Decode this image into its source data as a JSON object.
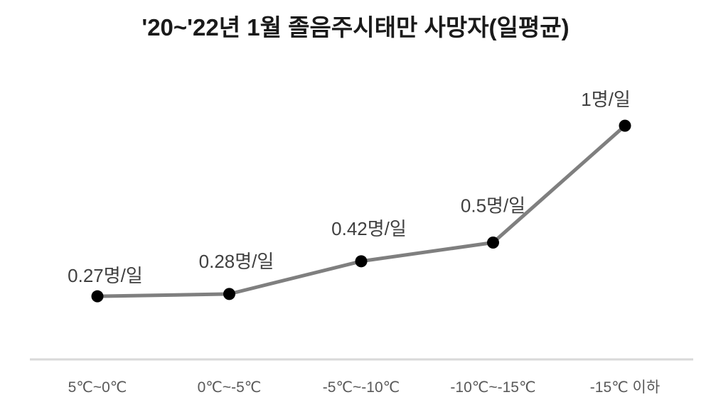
{
  "title": "'20~'22년 1월 졸음주시태만 사망자(일평균)",
  "chart_data": {
    "type": "line",
    "title": "'20~'22년 1월 졸음주시태만 사망자(일평균)",
    "categories": [
      "5℃~0℃",
      "0℃~-5℃",
      "-5℃~-10℃",
      "-10℃~-15℃",
      "-15℃ 이하"
    ],
    "series": [
      {
        "name": "졸음주시태만 사망자(일평균)",
        "values": [
          0.27,
          0.28,
          0.42,
          0.5,
          1
        ]
      }
    ],
    "data_labels": [
      "0.27명/일",
      "0.28명/일",
      "0.42명/일",
      "0.5명/일",
      "1명/일"
    ],
    "xlabel": "",
    "ylabel": "",
    "ylim": [
      0,
      1.1
    ],
    "grid": false,
    "legend": "none",
    "colors": {
      "line": "#7f7f7f",
      "marker": "#000000",
      "data_label": "#404040",
      "axis_label": "#595959",
      "axis_line": "#d9d9d9",
      "title": "#1a1a1a",
      "background": "#ffffff"
    }
  }
}
